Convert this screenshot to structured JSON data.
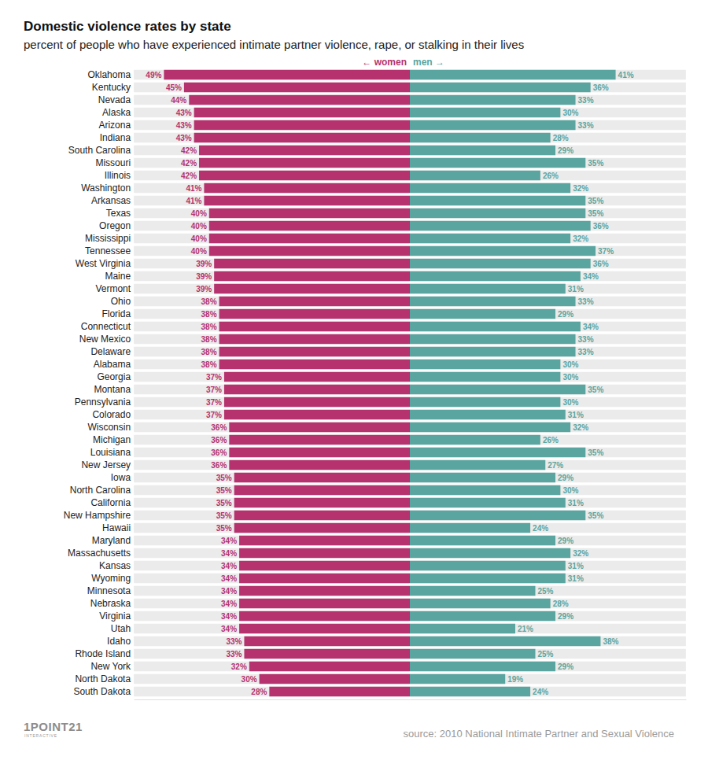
{
  "chart_data": {
    "type": "bar",
    "orientation": "horizontal",
    "title": "Domestic violence rates by state",
    "subtitle": "percent of people who have experienced intimate partner violence, rape, or stalking in their lives",
    "source": "source: 2010 National Intimate Partner and Sexual Violence",
    "credit": "1POINT21",
    "credit_sub": "INTERACTIVE",
    "categories": [
      "Oklahoma",
      "Kentucky",
      "Nevada",
      "Alaska",
      "Arizona",
      "Indiana",
      "South Carolina",
      "Missouri",
      "Illinois",
      "Washington",
      "Arkansas",
      "Texas",
      "Oregon",
      "Mississippi",
      "Tennessee",
      "West Virginia",
      "Maine",
      "Vermont",
      "Ohio",
      "Florida",
      "Connecticut",
      "New Mexico",
      "Delaware",
      "Alabama",
      "Georgia",
      "Montana",
      "Pennsylvania",
      "Colorado",
      "Wisconsin",
      "Michigan",
      "Louisiana",
      "New Jersey",
      "Iowa",
      "North Carolina",
      "California",
      "New Hampshire",
      "Hawaii",
      "Maryland",
      "Massachusetts",
      "Kansas",
      "Wyoming",
      "Minnesota",
      "Nebraska",
      "Virginia",
      "Utah",
      "Idaho",
      "Rhode Island",
      "New York",
      "North Dakota",
      "South Dakota"
    ],
    "series": [
      {
        "name": "← women",
        "color": "#b5326e",
        "values": [
          49,
          45,
          44,
          43,
          43,
          43,
          42,
          42,
          42,
          41,
          41,
          40,
          40,
          40,
          40,
          39,
          39,
          39,
          38,
          38,
          38,
          38,
          38,
          38,
          37,
          37,
          37,
          37,
          36,
          36,
          36,
          36,
          35,
          35,
          35,
          35,
          35,
          34,
          34,
          34,
          34,
          34,
          34,
          34,
          34,
          33,
          33,
          32,
          30,
          28
        ],
        "value_labels": [
          "49%",
          "45%",
          "44%",
          "43%",
          "43%",
          "43%",
          "42%",
          "42%",
          "42%",
          "41%",
          "41%",
          "40%",
          "40%",
          "40%",
          "40%",
          "39%",
          "39%",
          "39%",
          "38%",
          "38%",
          "38%",
          "38%",
          "38%",
          "38%",
          "37%",
          "37%",
          "37%",
          "37%",
          "36%",
          "36%",
          "36%",
          "36%",
          "35%",
          "35%",
          "35%",
          "35%",
          "35%",
          "34%",
          "34%",
          "34%",
          "34%",
          "34%",
          "34%",
          "34%",
          "34%",
          "33%",
          "33%",
          "32%",
          "30%",
          "28%"
        ]
      },
      {
        "name": "men →",
        "color": "#5aa5a0",
        "values": [
          41,
          36,
          33,
          30,
          33,
          28,
          29,
          35,
          26,
          32,
          35,
          35,
          36,
          32,
          37,
          36,
          34,
          31,
          33,
          29,
          34,
          33,
          33,
          30,
          30,
          35,
          30,
          31,
          32,
          26,
          35,
          27,
          29,
          30,
          31,
          35,
          24,
          29,
          32,
          31,
          31,
          25,
          28,
          29,
          21,
          38,
          25,
          29,
          19,
          24
        ],
        "value_labels": [
          "41%",
          "36%",
          "33%",
          "30%",
          "33%",
          "28%",
          "29%",
          "35%",
          "26%",
          "32%",
          "35%",
          "35%",
          "36%",
          "32%",
          "37%",
          "36%",
          "34%",
          "31%",
          "33%",
          "29%",
          "34%",
          "33%",
          "33%",
          "30%",
          "30%",
          "35%",
          "30%",
          "31%",
          "32%",
          "26%",
          "35%",
          "27%",
          "29%",
          "30%",
          "31%",
          "35%",
          "24%",
          "29%",
          "32%",
          "31%",
          "31%",
          "25%",
          "28%",
          "29%",
          "21%",
          "38%",
          "25%",
          "29%",
          "19%",
          "24%"
        ]
      }
    ],
    "xlim": [
      0,
      55
    ],
    "xticks": [],
    "data_labels": true,
    "tick_labels": "y",
    "grid": false
  }
}
